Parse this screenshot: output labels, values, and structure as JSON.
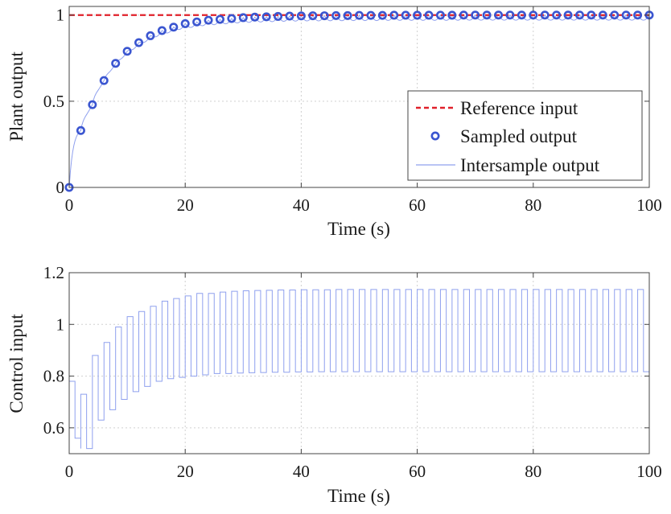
{
  "chart_data": [
    {
      "type": "line",
      "xlabel": "Time (s)",
      "ylabel": "Plant output",
      "xlim": [
        0,
        100
      ],
      "ylim": [
        0,
        1.05
      ],
      "xticks": [
        0,
        20,
        40,
        60,
        80,
        100
      ],
      "yticks": [
        0,
        0.5,
        1
      ],
      "ytick_labels": [
        "0",
        "0.5",
        "1"
      ],
      "grid": true,
      "legend_position": "lower-right",
      "colors": {
        "reference": "#e0202a",
        "sampled": "#3a55d0",
        "intersample": "#8fa0ee"
      },
      "series": [
        {
          "name": "Reference input",
          "style": "dashed-line",
          "x": [
            0,
            100
          ],
          "y": [
            1,
            1
          ]
        },
        {
          "name": "Sampled output",
          "style": "circle-markers",
          "x": [
            0,
            2,
            4,
            6,
            8,
            10,
            12,
            14,
            16,
            18,
            20,
            22,
            24,
            26,
            28,
            30,
            32,
            34,
            36,
            38,
            40,
            42,
            44,
            46,
            48,
            50,
            52,
            54,
            56,
            58,
            60,
            62,
            64,
            66,
            68,
            70,
            72,
            74,
            76,
            78,
            80,
            82,
            84,
            86,
            88,
            90,
            92,
            94,
            96,
            98,
            100
          ],
          "y": [
            0,
            0.33,
            0.48,
            0.62,
            0.72,
            0.79,
            0.84,
            0.88,
            0.91,
            0.93,
            0.95,
            0.96,
            0.97,
            0.975,
            0.98,
            0.985,
            0.988,
            0.99,
            0.992,
            0.994,
            0.995,
            0.996,
            0.996,
            0.997,
            0.997,
            0.998,
            0.998,
            0.998,
            0.999,
            0.999,
            0.999,
            0.999,
            0.999,
            0.999,
            1,
            1,
            1,
            1,
            1,
            1,
            1,
            1,
            1,
            1,
            1,
            1,
            1,
            1,
            1,
            1,
            1
          ]
        },
        {
          "name": "Intersample output",
          "style": "thin-line",
          "intersample_dip": 0.03
        }
      ]
    },
    {
      "type": "line",
      "xlabel": "Time (s)",
      "ylabel": "Control input",
      "xlim": [
        0,
        100
      ],
      "ylim": [
        0.5,
        1.2
      ],
      "xticks": [
        0,
        20,
        40,
        60,
        80,
        100
      ],
      "yticks": [
        0.6,
        0.8,
        1,
        1.2
      ],
      "ytick_labels": [
        "0.6",
        "0.8",
        "1",
        "1.2"
      ],
      "grid": true,
      "colors": {
        "control": "#8fa0ee"
      },
      "series": [
        {
          "style": "square-wave",
          "period": 2,
          "x": [
            0,
            2,
            4,
            6,
            8,
            10,
            12,
            14,
            16,
            18,
            20,
            22,
            24,
            26,
            28,
            30,
            32,
            34,
            36,
            38,
            40,
            42,
            44,
            46,
            48,
            50,
            52,
            54,
            56,
            58,
            60,
            62,
            64,
            66,
            68,
            70,
            72,
            74,
            76,
            78,
            80,
            82,
            84,
            86,
            88,
            90,
            92,
            94,
            96,
            98
          ],
          "high": [
            0.78,
            0.73,
            0.88,
            0.93,
            0.99,
            1.03,
            1.05,
            1.07,
            1.09,
            1.1,
            1.11,
            1.12,
            1.12,
            1.125,
            1.128,
            1.13,
            1.131,
            1.132,
            1.133,
            1.133,
            1.134,
            1.134,
            1.134,
            1.135,
            1.135,
            1.135,
            1.135,
            1.135,
            1.135,
            1.135,
            1.135,
            1.135,
            1.135,
            1.135,
            1.135,
            1.135,
            1.135,
            1.135,
            1.135,
            1.135,
            1.135,
            1.135,
            1.135,
            1.135,
            1.135,
            1.135,
            1.135,
            1.135,
            1.135,
            1.135
          ],
          "low": [
            0.56,
            0.52,
            0.63,
            0.67,
            0.71,
            0.74,
            0.76,
            0.78,
            0.79,
            0.795,
            0.8,
            0.805,
            0.81,
            0.81,
            0.812,
            0.813,
            0.814,
            0.815,
            0.815,
            0.816,
            0.816,
            0.817,
            0.817,
            0.817,
            0.817,
            0.817,
            0.817,
            0.817,
            0.817,
            0.817,
            0.817,
            0.817,
            0.817,
            0.817,
            0.817,
            0.817,
            0.817,
            0.817,
            0.817,
            0.817,
            0.817,
            0.817,
            0.817,
            0.817,
            0.817,
            0.817,
            0.817,
            0.817,
            0.817,
            0.817
          ]
        }
      ]
    }
  ]
}
